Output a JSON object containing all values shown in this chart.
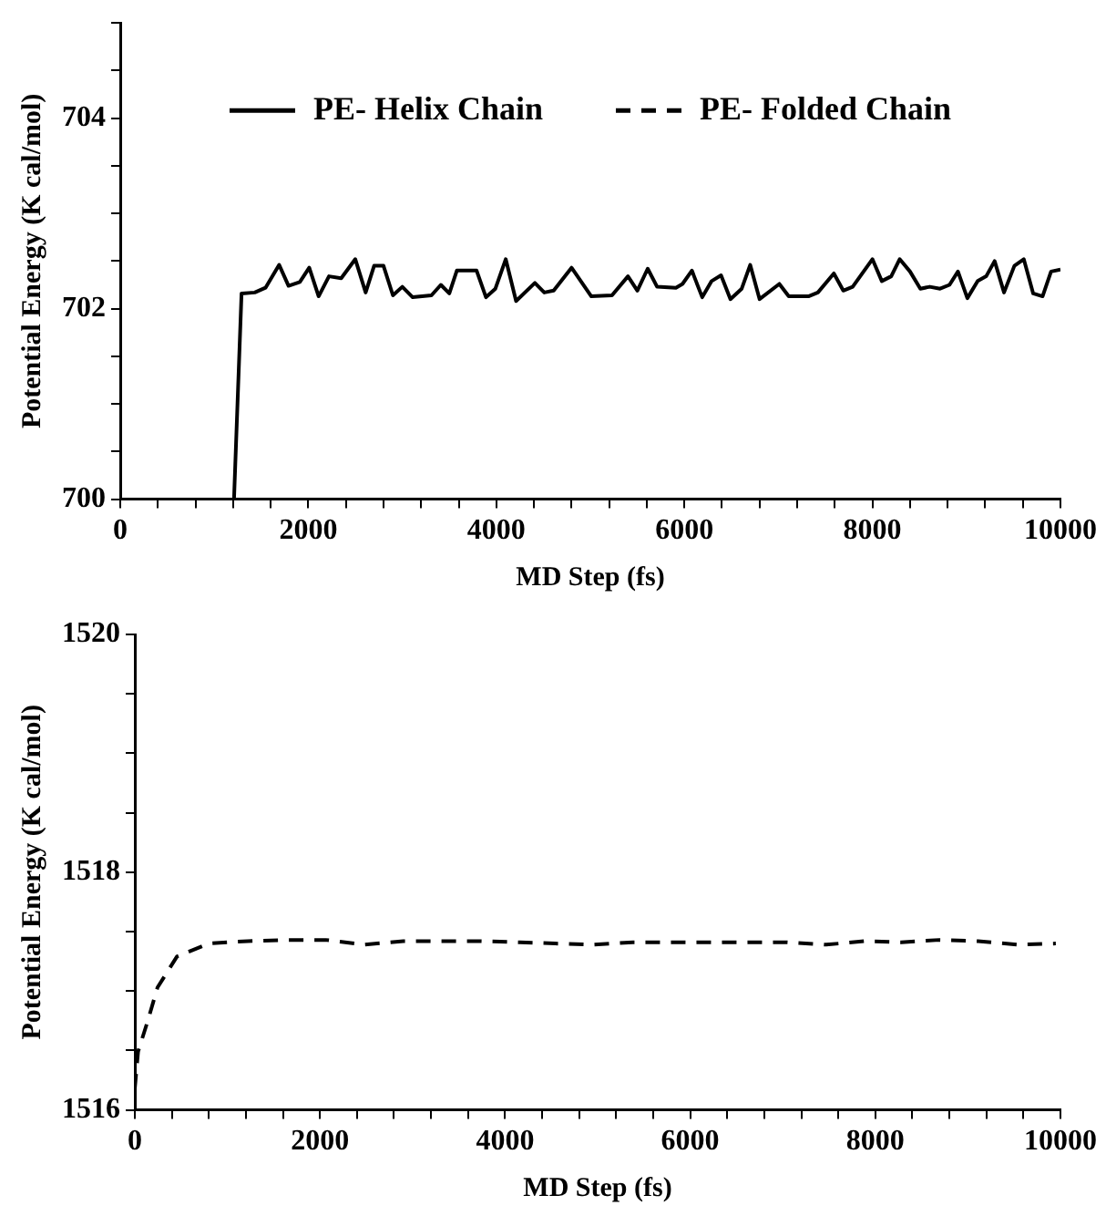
{
  "chart_data": [
    {
      "type": "line",
      "xlabel": "MD Step (fs)",
      "ylabel": "Potential Energy (K cal/mol)",
      "xlim": [
        0,
        10000
      ],
      "ylim": [
        700,
        705
      ],
      "xticks": [
        0,
        {
          "value": 400,
          "label": null
        },
        {
          "value": 800,
          "label": null
        },
        {
          "value": 1200,
          "label": null
        },
        {
          "value": 1600,
          "label": null
        },
        2000,
        {
          "value": 2400,
          "label": null
        },
        {
          "value": 2800,
          "label": null
        },
        {
          "value": 3200,
          "label": null
        },
        {
          "value": 3600,
          "label": null
        },
        4000,
        {
          "value": 4400,
          "label": null
        },
        {
          "value": 4800,
          "label": null
        },
        {
          "value": 5200,
          "label": null
        },
        {
          "value": 5600,
          "label": null
        },
        6000,
        {
          "value": 6400,
          "label": null
        },
        {
          "value": 6800,
          "label": null
        },
        {
          "value": 7200,
          "label": null
        },
        {
          "value": 7600,
          "label": null
        },
        8000,
        {
          "value": 8400,
          "label": null
        },
        {
          "value": 8800,
          "label": null
        },
        {
          "value": 9200,
          "label": null
        },
        {
          "value": 9600,
          "label": null
        },
        10000
      ],
      "yticks": [
        700,
        {
          "value": 700.5,
          "label": null
        },
        {
          "value": 701,
          "label": null
        },
        {
          "value": 701.5,
          "label": null
        },
        702,
        {
          "value": 702.5,
          "label": null
        },
        {
          "value": 703,
          "label": null
        },
        {
          "value": 703.5,
          "label": null
        },
        704,
        {
          "value": 704.5,
          "label": null
        },
        {
          "value": 705,
          "label": null
        }
      ],
      "legend": "top",
      "marker": "none",
      "series": [
        {
          "name": "PE- Helix Chain",
          "color": "#000000",
          "line_style": "solid",
          "x": [
            1210,
            1290,
            1430,
            1545,
            1690,
            1790,
            1910,
            2010,
            2110,
            2220,
            2350,
            2500,
            2610,
            2700,
            2800,
            2900,
            3000,
            3110,
            3310,
            3410,
            3500,
            3580,
            3790,
            3890,
            3990,
            4100,
            4210,
            4410,
            4510,
            4610,
            4800,
            5010,
            5230,
            5400,
            5500,
            5610,
            5710,
            5910,
            5980,
            6080,
            6190,
            6290,
            6390,
            6490,
            6610,
            6700,
            6800,
            7010,
            7110,
            7320,
            7420,
            7590,
            7690,
            7790,
            8000,
            8100,
            8200,
            8290,
            8400,
            8510,
            8610,
            8720,
            8820,
            8910,
            9010,
            9120,
            9210,
            9300,
            9400,
            9510,
            9610,
            9710,
            9810,
            9900,
            10000
          ],
          "values": [
            700,
            702.16,
            702.17,
            702.22,
            702.46,
            702.24,
            702.28,
            702.43,
            702.13,
            702.34,
            702.32,
            702.52,
            702.17,
            702.45,
            702.45,
            702.14,
            702.23,
            702.12,
            702.14,
            702.25,
            702.16,
            702.4,
            702.4,
            702.12,
            702.21,
            702.52,
            702.08,
            702.27,
            702.17,
            702.19,
            702.43,
            702.13,
            702.14,
            702.34,
            702.19,
            702.42,
            702.23,
            702.22,
            702.26,
            702.4,
            702.12,
            702.29,
            702.35,
            702.1,
            702.21,
            702.46,
            702.1,
            702.26,
            702.13,
            702.13,
            702.17,
            702.37,
            702.19,
            702.23,
            702.52,
            702.29,
            702.34,
            702.52,
            702.39,
            702.21,
            702.23,
            702.21,
            702.25,
            702.39,
            702.11,
            702.29,
            702.34,
            702.5,
            702.17,
            702.45,
            702.52,
            702.16,
            702.13,
            702.39,
            702.41
          ]
        }
      ]
    },
    {
      "type": "line",
      "xlabel": "MD Step (fs)",
      "ylabel": "Potential Energy (K cal/mol)",
      "xlim": [
        0,
        10000
      ],
      "ylim": [
        1516,
        1520
      ],
      "xticks": [
        0,
        {
          "value": 400,
          "label": null
        },
        {
          "value": 800,
          "label": null
        },
        {
          "value": 1200,
          "label": null
        },
        {
          "value": 1600,
          "label": null
        },
        2000,
        {
          "value": 2400,
          "label": null
        },
        {
          "value": 2800,
          "label": null
        },
        {
          "value": 3200,
          "label": null
        },
        {
          "value": 3600,
          "label": null
        },
        4000,
        {
          "value": 4400,
          "label": null
        },
        {
          "value": 4800,
          "label": null
        },
        {
          "value": 5200,
          "label": null
        },
        {
          "value": 5600,
          "label": null
        },
        6000,
        {
          "value": 6400,
          "label": null
        },
        {
          "value": 6800,
          "label": null
        },
        {
          "value": 7200,
          "label": null
        },
        {
          "value": 7600,
          "label": null
        },
        8000,
        {
          "value": 8400,
          "label": null
        },
        {
          "value": 8800,
          "label": null
        },
        {
          "value": 9200,
          "label": null
        },
        {
          "value": 9600,
          "label": null
        },
        10000
      ],
      "yticks": [
        1516,
        {
          "value": 1516.5,
          "label": null
        },
        {
          "value": 1517,
          "label": null
        },
        {
          "value": 1517.5,
          "label": null
        },
        1518,
        {
          "value": 1518.5,
          "label": null
        },
        {
          "value": 1519,
          "label": null
        },
        {
          "value": 1519.5,
          "label": null
        },
        1520
      ],
      "legend": false,
      "marker": "none",
      "series": [
        {
          "name": "PE- Folded Chain",
          "color": "#000000",
          "line_style": "dashed",
          "x": [
            0,
            35,
            140,
            245,
            455,
            800,
            1220,
            1640,
            2060,
            2480,
            2900,
            3320,
            3740,
            4160,
            4540,
            4960,
            5380,
            5800,
            6220,
            6630,
            7050,
            7470,
            7890,
            8280,
            8690,
            9110,
            9530,
            9950
          ],
          "values": [
            1516.18,
            1516.49,
            1516.75,
            1517.03,
            1517.29,
            1517.4,
            1517.42,
            1517.43,
            1517.43,
            1517.39,
            1517.42,
            1517.42,
            1517.42,
            1517.41,
            1517.4,
            1517.39,
            1517.41,
            1517.41,
            1517.41,
            1517.41,
            1517.41,
            1517.39,
            1517.42,
            1517.41,
            1517.43,
            1517.42,
            1517.39,
            1517.4
          ]
        }
      ]
    }
  ]
}
